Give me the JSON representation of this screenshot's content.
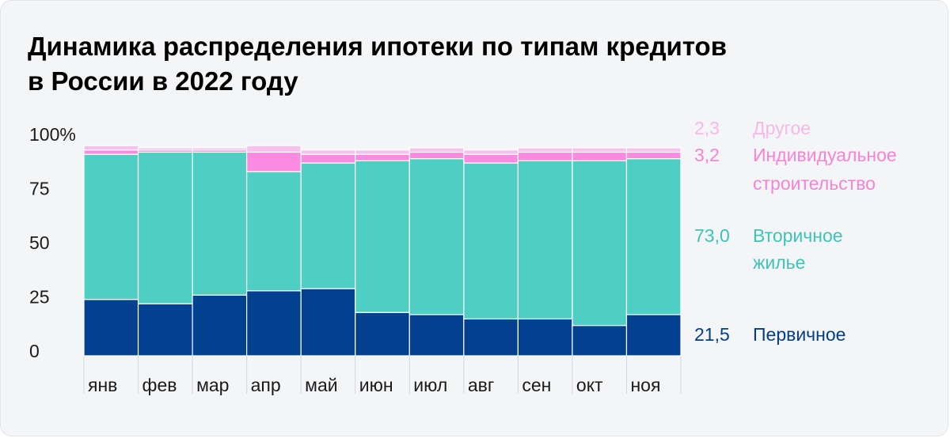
{
  "title": {
    "line1": "Динамика распределения ипотеки по типам кредитов",
    "line2": "в России в 2022 году"
  },
  "colors": {
    "primary": "#03408f",
    "secondary": "#4fcfc4",
    "individual": "#fb8be0",
    "other": "#f8c1ee",
    "individual_label": "#f484d5",
    "other_label": "#f5b9e8",
    "secondary_label": "#40c2b6",
    "primary_label": "#053d85"
  },
  "chart_data": {
    "type": "bar",
    "stacked": true,
    "categories": [
      "янв",
      "фев",
      "мар",
      "апр",
      "май",
      "июн",
      "июл",
      "авг",
      "сен",
      "окт",
      "ноя"
    ],
    "series": [
      {
        "name": "Первичное",
        "values": [
          26,
          24,
          28,
          30,
          31,
          20,
          19,
          17,
          17,
          14,
          19
        ]
      },
      {
        "name": "Вторичное жилье",
        "values": [
          67,
          70,
          66,
          55,
          58,
          70,
          72,
          72,
          73,
          76,
          72
        ]
      },
      {
        "name": "Индивидуальное строительство",
        "values": [
          2,
          1,
          1,
          9,
          4,
          3,
          3,
          4,
          4,
          4,
          3
        ]
      },
      {
        "name": "Другое",
        "values": [
          2,
          1,
          1,
          3,
          2,
          2,
          2,
          2,
          2,
          2,
          2
        ]
      }
    ],
    "y_ticks": [
      "0",
      "25",
      "50",
      "75",
      "100%"
    ],
    "ylim": [
      0,
      100
    ],
    "legend": [
      {
        "value": "2,3",
        "label": "Другое"
      },
      {
        "value": "3,2",
        "label": "Индивидуальное строительство",
        "lines": [
          "Индивидуальное",
          "строительство"
        ]
      },
      {
        "value": "73,0",
        "label": "Вторичное жилье",
        "lines": [
          "Вторичное",
          "жилье"
        ]
      },
      {
        "value": "21,5",
        "label": "Первичное"
      }
    ],
    "legend_position": "right",
    "grid": false
  }
}
